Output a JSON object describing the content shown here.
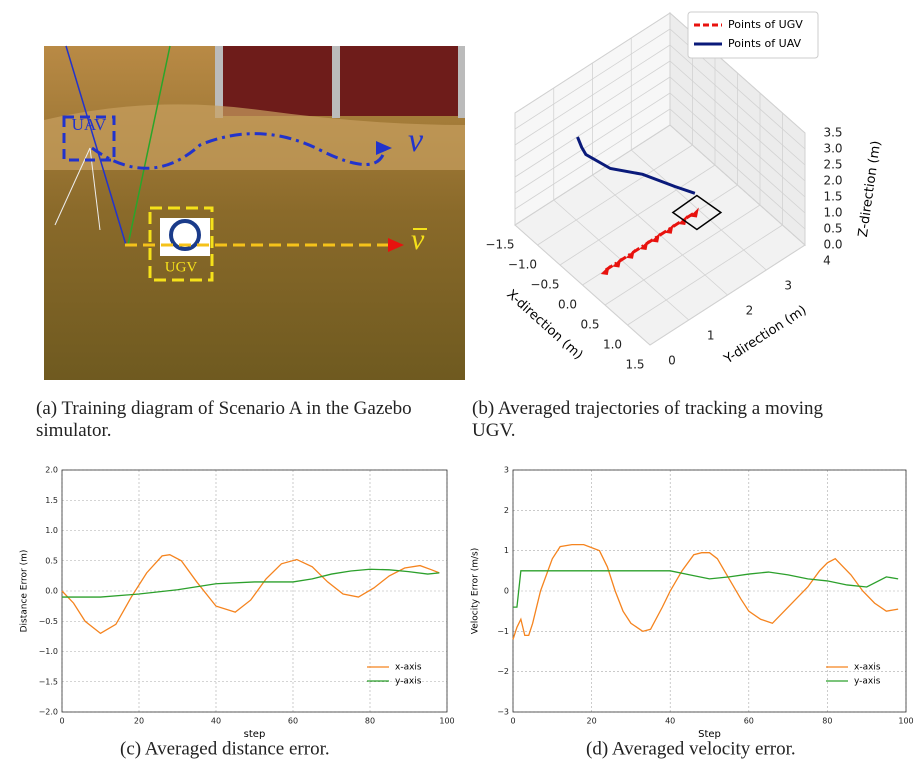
{
  "figure_a": {
    "uav_label": "UAV",
    "ugv_label": "UGV",
    "uav_velocity": "v",
    "ugv_velocity": "v"
  },
  "captions": [
    "(a)  Training diagram of Scenario A in the Gazebo simulator.",
    "(b)  Averaged trajectories of tracking a moving UGV.",
    "(c)  Averaged distance error.",
    "(d)  Averaged velocity error."
  ],
  "chart_data": [
    {
      "type": "line3d",
      "xlabel": "X-direction (m)",
      "ylabel": "Y-direction (m)",
      "zlabel": "Z-direction (m)",
      "xlim": [
        -1.5,
        1.5
      ],
      "ylim": [
        0,
        4
      ],
      "zlim": [
        0,
        3.5
      ],
      "xticks": [
        {
          "value": -1.5,
          "label": "−1.5"
        },
        {
          "value": -1,
          "label": "−1.0"
        },
        {
          "value": -0.5,
          "label": "−0.5"
        },
        {
          "value": 0,
          "label": "0.0"
        },
        {
          "value": 0.5,
          "label": "0.5"
        },
        {
          "value": 1,
          "label": "1.0"
        },
        {
          "value": 1.5,
          "label": "1.5"
        }
      ],
      "yticks": [
        0,
        1,
        2,
        3,
        4
      ],
      "zticks": [
        {
          "value": 0,
          "label": "0.0"
        },
        {
          "value": 0.5,
          "label": "0.5"
        },
        {
          "value": 1,
          "label": "1.0"
        },
        {
          "value": 1.5,
          "label": "1.5"
        },
        {
          "value": 2,
          "label": "2.0"
        },
        {
          "value": 2.5,
          "label": "2.5"
        },
        {
          "value": 3,
          "label": "3.0"
        },
        {
          "value": 3.5,
          "label": "3.5"
        }
      ],
      "legend": "upper right",
      "series": [
        {
          "name": "Points of UGV",
          "color": "#e8120e",
          "x": [
            0,
            0,
            0,
            0,
            0,
            0,
            0,
            0
          ],
          "y": [
            0.6,
            0.9,
            1.25,
            1.6,
            1.9,
            2.25,
            2.6,
            2.9
          ],
          "z": [
            0,
            0,
            0,
            0,
            0,
            0,
            0,
            0
          ]
        },
        {
          "name": "Points of UAV",
          "color": "#0a1a7a",
          "x": [
            -0.8,
            -0.75,
            -0.7,
            -0.5,
            -0.3,
            -0.1,
            0
          ],
          "y": [
            0.8,
            0.85,
            0.9,
            1.3,
            1.9,
            2.5,
            2.9
          ],
          "z": [
            3.0,
            2.7,
            2.5,
            2.0,
            1.6,
            1.0,
            0.6
          ]
        }
      ]
    },
    {
      "type": "line",
      "xlabel": "step",
      "ylabel": "Distance Error (m)",
      "xlim": [
        0,
        100
      ],
      "ylim": [
        -2,
        2
      ],
      "xticks": [
        0,
        20,
        40,
        60,
        80,
        100
      ],
      "yticks": [
        {
          "value": -2,
          "label": "−2.0"
        },
        {
          "value": -1.5,
          "label": "−1.5"
        },
        {
          "value": -1,
          "label": "−1.0"
        },
        {
          "value": -0.5,
          "label": "−0.5"
        },
        {
          "value": 0,
          "label": "0.0"
        },
        {
          "value": 0.5,
          "label": "0.5"
        },
        {
          "value": 1,
          "label": "1.0"
        },
        {
          "value": 1.5,
          "label": "1.5"
        },
        {
          "value": 2,
          "label": "2.0"
        }
      ],
      "grid": true,
      "legend": "lower right",
      "series": [
        {
          "name": "x-axis",
          "color": "#f5841f",
          "x": [
            0,
            3,
            6,
            10,
            14,
            18,
            22,
            26,
            28,
            31,
            35,
            40,
            45,
            49,
            53,
            57,
            61,
            65,
            69,
            73,
            77,
            81,
            85,
            89,
            93,
            96,
            98
          ],
          "values": [
            0,
            -0.2,
            -0.5,
            -0.7,
            -0.55,
            -0.1,
            0.3,
            0.58,
            0.6,
            0.5,
            0.15,
            -0.25,
            -0.35,
            -0.15,
            0.2,
            0.45,
            0.52,
            0.4,
            0.15,
            -0.05,
            -0.1,
            0.05,
            0.25,
            0.38,
            0.42,
            0.35,
            0.3
          ]
        },
        {
          "name": "y-axis",
          "color": "#2ca02c",
          "x": [
            0,
            10,
            20,
            30,
            40,
            50,
            60,
            65,
            70,
            75,
            80,
            85,
            90,
            95,
            98
          ],
          "values": [
            -0.1,
            -0.1,
            -0.05,
            0.02,
            0.12,
            0.15,
            0.15,
            0.2,
            0.28,
            0.33,
            0.36,
            0.35,
            0.32,
            0.28,
            0.3
          ]
        }
      ]
    },
    {
      "type": "line",
      "xlabel": "Step",
      "ylabel": "Velocity Error (m/s)",
      "xlim": [
        0,
        100
      ],
      "ylim": [
        -3,
        3
      ],
      "xticks": [
        0,
        20,
        40,
        60,
        80,
        100
      ],
      "yticks": [
        {
          "value": -3,
          "label": "−3"
        },
        {
          "value": -2,
          "label": "−2"
        },
        {
          "value": -1,
          "label": "−1"
        },
        0,
        1,
        2,
        3
      ],
      "grid": true,
      "legend": "lower right",
      "series": [
        {
          "name": "x-axis",
          "color": "#f5841f",
          "x": [
            0,
            1,
            2,
            3,
            4,
            5,
            7,
            10,
            12,
            15,
            18,
            22,
            24,
            26,
            28,
            30,
            33,
            35,
            38,
            40,
            43,
            46,
            48,
            50,
            52,
            55,
            58,
            60,
            63,
            66,
            69,
            72,
            75,
            78,
            80,
            82,
            84,
            86,
            89,
            92,
            95,
            98
          ],
          "values": [
            -1.2,
            -0.9,
            -0.7,
            -1.1,
            -1.1,
            -0.8,
            0,
            0.8,
            1.1,
            1.15,
            1.15,
            1.0,
            0.6,
            0,
            -0.5,
            -0.8,
            -1.0,
            -0.95,
            -0.4,
            0,
            0.5,
            0.9,
            0.95,
            0.95,
            0.8,
            0.3,
            -0.2,
            -0.5,
            -0.7,
            -0.8,
            -0.5,
            -0.2,
            0.1,
            0.5,
            0.7,
            0.8,
            0.6,
            0.4,
            0,
            -0.3,
            -0.5,
            -0.45
          ]
        },
        {
          "name": "y-axis",
          "color": "#2ca02c",
          "x": [
            0,
            1,
            2,
            10,
            20,
            30,
            40,
            45,
            50,
            55,
            60,
            65,
            70,
            75,
            80,
            85,
            90,
            95,
            98
          ],
          "values": [
            -0.4,
            -0.4,
            0.5,
            0.5,
            0.5,
            0.5,
            0.5,
            0.4,
            0.3,
            0.35,
            0.42,
            0.47,
            0.4,
            0.3,
            0.25,
            0.15,
            0.1,
            0.35,
            0.3
          ]
        }
      ]
    }
  ]
}
